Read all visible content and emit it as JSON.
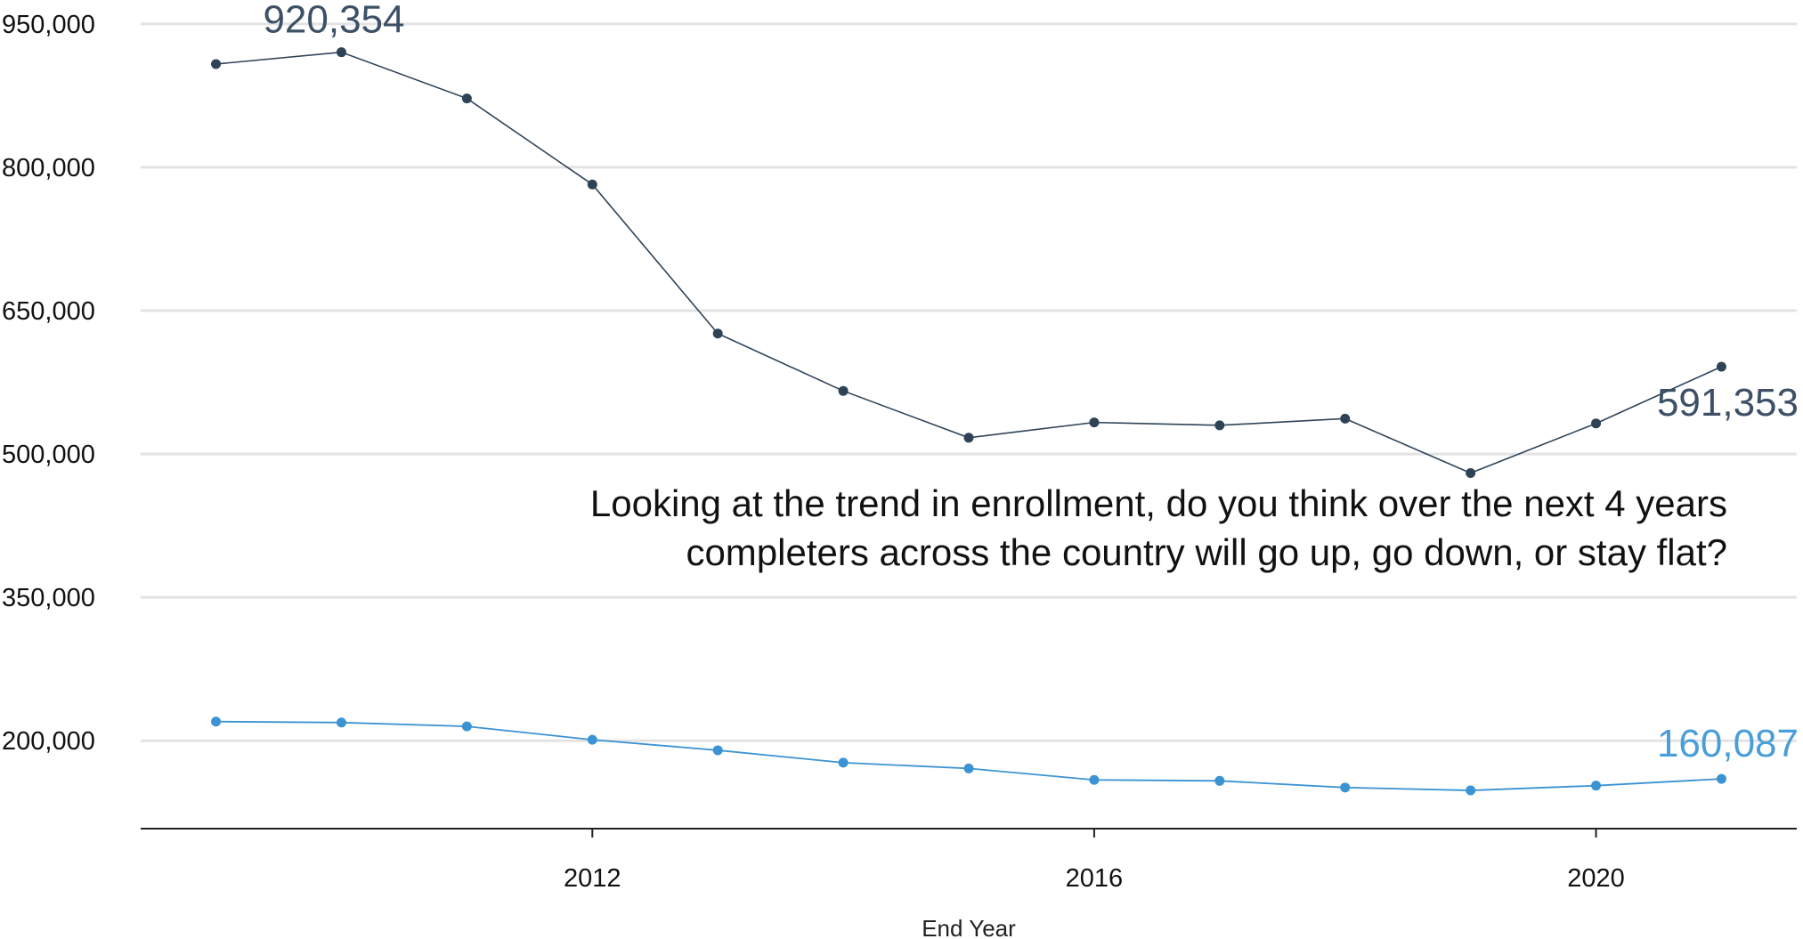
{
  "chart_data": {
    "type": "line",
    "xlabel": "End Year",
    "ylabel": "",
    "x": [
      2009,
      2010,
      2011,
      2012,
      2013,
      2014,
      2015,
      2016,
      2017,
      2018,
      2019,
      2020,
      2021
    ],
    "xlim": [
      2008.4,
      2021.6
    ],
    "x_ticks": [
      2012,
      2016,
      2020
    ],
    "x_tick_labels": [
      "2012",
      "2016",
      "2020"
    ],
    "ylim": [
      108000,
      975000
    ],
    "y_ticks": [
      200000,
      350000,
      500000,
      650000,
      800000,
      950000
    ],
    "y_tick_labels": [
      "200,000",
      "350,000",
      "500,000",
      "650,000",
      "800,000",
      "950,000"
    ],
    "grid": true,
    "legend": "none",
    "series": [
      {
        "color": "#2f4357",
        "values": [
          908000,
          920354,
          872000,
          782000,
          626000,
          566000,
          517000,
          533000,
          530000,
          537000,
          480000,
          532000,
          591353
        ]
      },
      {
        "color": "#3b93d3",
        "values": [
          220000,
          219000,
          215000,
          201000,
          190000,
          177000,
          171000,
          159000,
          158000,
          151000,
          148000,
          153000,
          160087
        ]
      }
    ],
    "data_labels": [
      {
        "series": 0,
        "x": 2010,
        "text": "920,354",
        "color": "#3d5066"
      },
      {
        "series": 0,
        "x": 2021,
        "text": "591,353",
        "color": "#3d5066"
      },
      {
        "series": 1,
        "x": 2021,
        "text": "160,087",
        "color": "#4a9ed8"
      }
    ],
    "annotation": {
      "lines": [
        "Looking at the trend in enrollment, do you think over the next 4 years",
        "completers across the country will go up, go down, or stay flat?"
      ]
    }
  }
}
